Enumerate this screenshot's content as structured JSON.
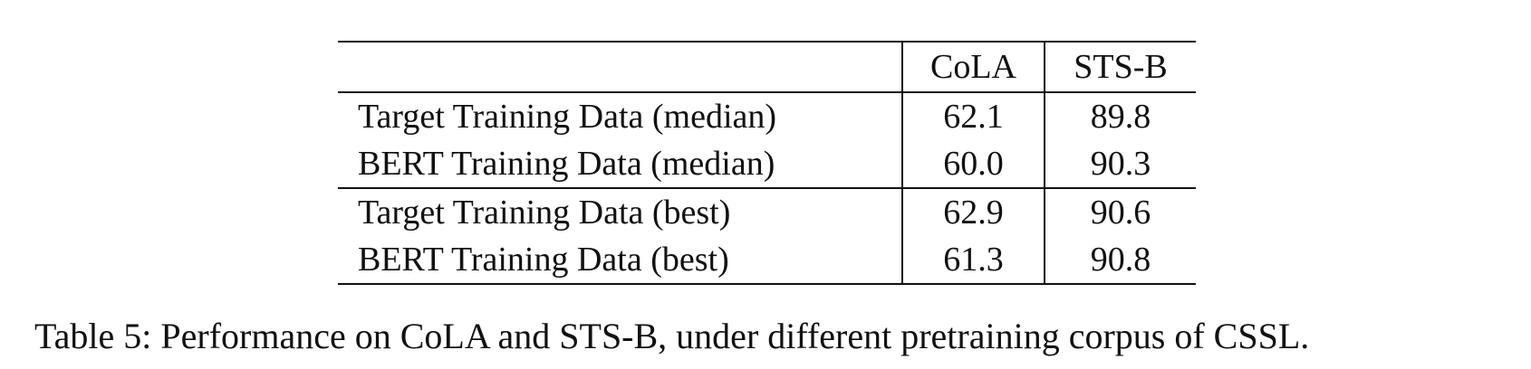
{
  "table": {
    "header": [
      "CoLA",
      "STS-B"
    ],
    "rows": [
      [
        "Target Training Data (median)",
        "62.1",
        "89.8"
      ],
      [
        "BERT Training Data (median)",
        "60.0",
        "90.3"
      ],
      [
        "Target Training Data (best)",
        "62.9",
        "90.6"
      ],
      [
        "BERT Training Data (best)",
        "61.3",
        "90.8"
      ]
    ],
    "caption": "Table 5: Performance on CoLA and STS-B, under different pretraining corpus of CSSL."
  }
}
